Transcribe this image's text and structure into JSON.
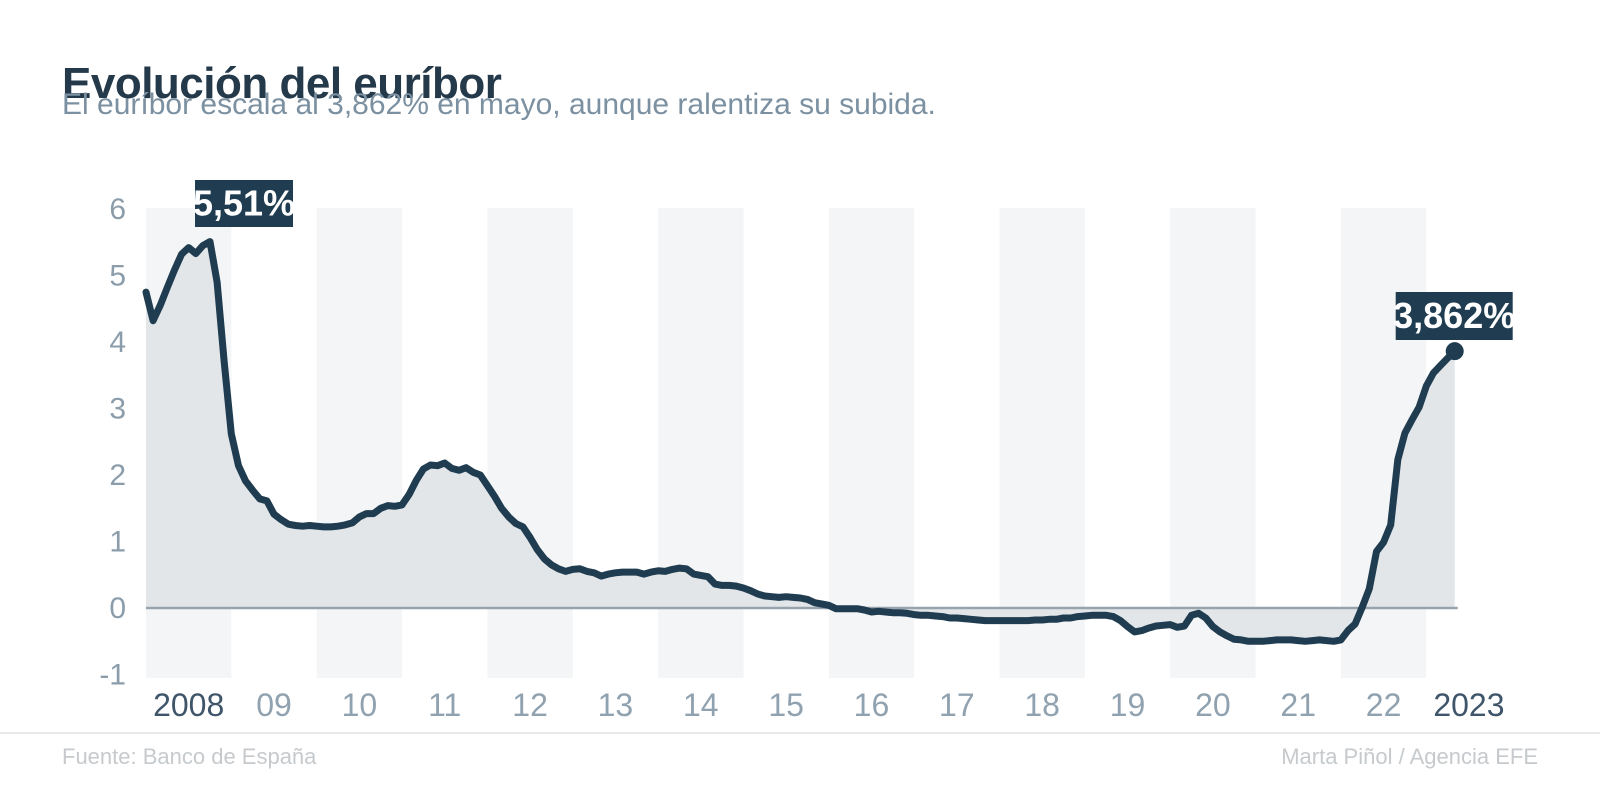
{
  "header": {
    "title": "Evolución del euríbor",
    "subtitle": "El euríbor escala al 3,862% en mayo, aunque ralentiza su subida."
  },
  "footer": {
    "source": "Fuente: Banco de España",
    "credit": "Marta Piñol / Agencia EFE"
  },
  "chart_data": {
    "type": "area",
    "title": "Evolución del euríbor",
    "unit": "%",
    "grid": "alternating-year-bands",
    "legend": "none",
    "x_axis": {
      "start_year": 2008,
      "end_year": 2023,
      "tick_labels": [
        "2008",
        "09",
        "10",
        "11",
        "12",
        "13",
        "14",
        "15",
        "16",
        "17",
        "18",
        "19",
        "20",
        "21",
        "22",
        "2023"
      ]
    },
    "y_axis": {
      "ticks": [
        6,
        5,
        4,
        3,
        2,
        1,
        0,
        -1
      ],
      "range": [
        -1,
        6
      ],
      "zero_baseline": true
    },
    "monthly_values": {
      "2008": [
        4.75,
        4.32,
        4.55,
        4.82,
        5.08,
        5.32,
        5.42,
        5.33,
        5.45,
        5.51,
        4.9,
        3.7
      ],
      "2009": [
        2.62,
        2.14,
        1.91,
        1.77,
        1.64,
        1.61,
        1.41,
        1.33,
        1.26,
        1.24,
        1.23,
        1.24
      ],
      "2010": [
        1.23,
        1.22,
        1.22,
        1.23,
        1.25,
        1.28,
        1.37,
        1.42,
        1.42,
        1.5,
        1.54,
        1.53
      ],
      "2011": [
        1.55,
        1.71,
        1.92,
        2.09,
        2.15,
        2.14,
        2.18,
        2.1,
        2.07,
        2.11,
        2.04,
        2.0
      ],
      "2012": [
        1.84,
        1.68,
        1.5,
        1.37,
        1.27,
        1.22,
        1.06,
        0.88,
        0.74,
        0.65,
        0.59,
        0.55
      ],
      "2013": [
        0.58,
        0.59,
        0.55,
        0.53,
        0.48,
        0.51,
        0.53,
        0.54,
        0.54,
        0.54,
        0.51,
        0.54
      ],
      "2014": [
        0.56,
        0.55,
        0.58,
        0.6,
        0.59,
        0.51,
        0.49,
        0.47,
        0.36,
        0.34,
        0.34,
        0.33
      ],
      "2015": [
        0.3,
        0.26,
        0.21,
        0.18,
        0.17,
        0.16,
        0.17,
        0.16,
        0.15,
        0.13,
        0.08,
        0.06
      ],
      "2016": [
        0.04,
        -0.01,
        -0.01,
        -0.01,
        -0.01,
        -0.03,
        -0.06,
        -0.05,
        -0.06,
        -0.07,
        -0.07,
        -0.08
      ],
      "2017": [
        -0.1,
        -0.11,
        -0.11,
        -0.12,
        -0.13,
        -0.15,
        -0.15,
        -0.16,
        -0.17,
        -0.18,
        -0.19,
        -0.19
      ],
      "2018": [
        -0.19,
        -0.19,
        -0.19,
        -0.19,
        -0.19,
        -0.18,
        -0.18,
        -0.17,
        -0.17,
        -0.15,
        -0.15,
        -0.13
      ],
      "2019": [
        -0.12,
        -0.11,
        -0.11,
        -0.11,
        -0.13,
        -0.19,
        -0.28,
        -0.36,
        -0.34,
        -0.3,
        -0.27,
        -0.26
      ],
      "2020": [
        -0.25,
        -0.29,
        -0.27,
        -0.11,
        -0.08,
        -0.15,
        -0.28,
        -0.36,
        -0.42,
        -0.47,
        -0.48,
        -0.5
      ],
      "2021": [
        -0.5,
        -0.5,
        -0.49,
        -0.48,
        -0.48,
        -0.48,
        -0.49,
        -0.5,
        -0.49,
        -0.48,
        -0.49,
        -0.5
      ],
      "2022": [
        -0.48,
        -0.34,
        -0.24,
        0.01,
        0.29,
        0.85,
        0.99,
        1.25,
        2.23,
        2.63,
        2.83,
        3.02
      ],
      "2023": [
        3.337,
        3.534,
        3.647,
        3.757,
        3.862
      ]
    },
    "annotations": [
      {
        "label": "5,51%",
        "year": 2008,
        "month": 10,
        "value": 5.51,
        "marker": false
      },
      {
        "label": "3,862%",
        "year": 2023,
        "month": 5,
        "value": 3.862,
        "marker": true
      }
    ],
    "colors": {
      "line": "#1f3c50",
      "area_fill": "#e2e6e9",
      "year_band": "#f4f5f6",
      "zero_line": "#98a4ad",
      "y_tick_text": "#8b9dab",
      "x_tick_text": "#90a2b0",
      "x_tick_text_endpoints": "#3f556a",
      "annotation_bg": "#1f3c50",
      "annotation_text": "#ffffff"
    }
  }
}
